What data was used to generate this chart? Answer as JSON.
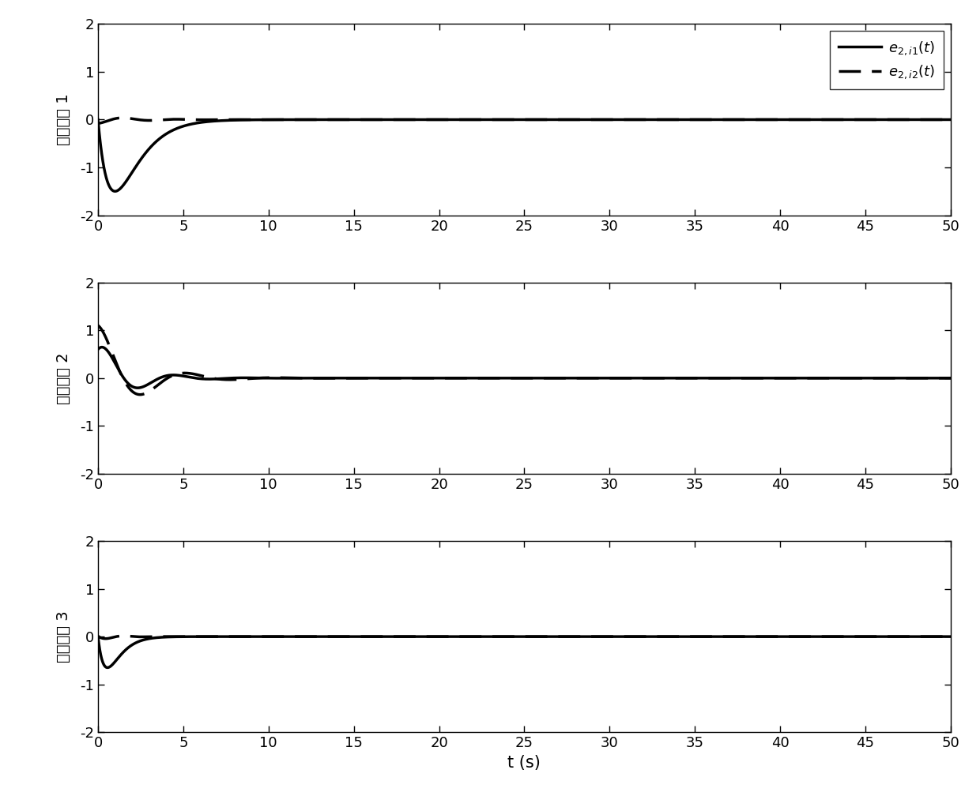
{
  "title": "",
  "xlabel": "t (s)",
  "ylim": [
    -2,
    2
  ],
  "xlim": [
    0,
    50
  ],
  "yticks": [
    -2,
    -1,
    0,
    1,
    2
  ],
  "xticks": [
    0,
    5,
    10,
    15,
    20,
    25,
    30,
    35,
    40,
    45,
    50
  ],
  "ylabel_1": "机械系统 1",
  "ylabel_2": "机械系统 2",
  "ylabel_3": "机械系统 3",
  "legend_solid": "$e_{2,i1}(t)$",
  "legend_dashed": "$e_{2,i2}(t)$",
  "line_color": "black",
  "line_width": 2.5,
  "background_color": "white"
}
